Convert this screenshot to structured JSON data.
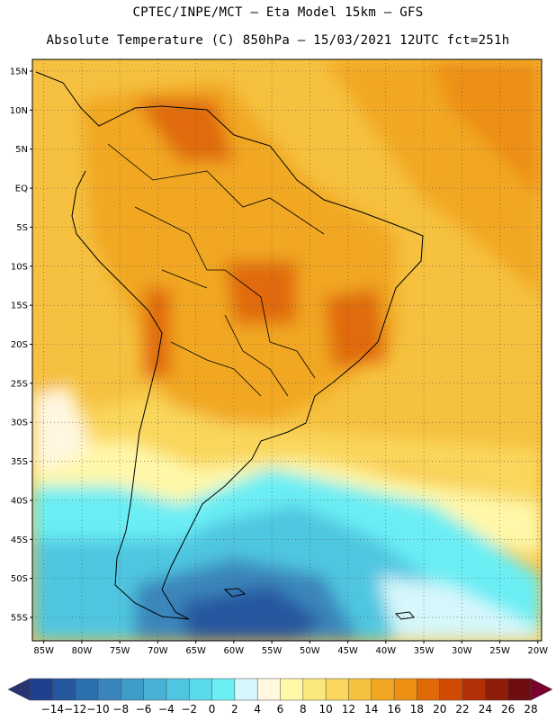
{
  "header": {
    "line1": "CPTEC/INPE/MCT –  Eta Model 15km – GFS",
    "line2": "Absolute Temperature (C) 850hPa – 15/03/2021 12UTC fct=251h"
  },
  "map": {
    "region": "South America",
    "lat_labels": [
      "15N",
      "10N",
      "5N",
      "EQ",
      "5S",
      "10S",
      "15S",
      "20S",
      "25S",
      "30S",
      "35S",
      "40S",
      "45S",
      "50S",
      "55S"
    ],
    "lon_labels": [
      "85W",
      "80W",
      "75W",
      "70W",
      "65W",
      "60W",
      "55W",
      "50W",
      "45W",
      "40W",
      "35W",
      "30W",
      "25W",
      "20W"
    ],
    "lat_range": [
      -58,
      16.5
    ],
    "lon_range": [
      -86.5,
      -19.5
    ],
    "grid": "dotted",
    "variable": "temperature_850hPa"
  },
  "colorbar": {
    "labels": [
      "-14",
      "-12",
      "-10",
      "-8",
      "-6",
      "-4",
      "-2",
      "0",
      "2",
      "4",
      "6",
      "8",
      "10",
      "12",
      "14",
      "16",
      "18",
      "20",
      "22",
      "24",
      "26",
      "28"
    ],
    "colors": [
      "#1f3f8f",
      "#25579f",
      "#2a6fae",
      "#3a86bc",
      "#3f9cc9",
      "#47b2d6",
      "#4fc6e0",
      "#5ad9ea",
      "#6beef4",
      "#d6f7fb",
      "#fff7e0",
      "#fff8a8",
      "#fbe87a",
      "#f9d75c",
      "#f6c13f",
      "#f1a722",
      "#ee8f14",
      "#e06a08",
      "#cf4b05",
      "#b33006",
      "#8e1d0a",
      "#6e0d12"
    ]
  },
  "styling": {
    "land_outline": "#000000",
    "grid_color": "#555555"
  }
}
